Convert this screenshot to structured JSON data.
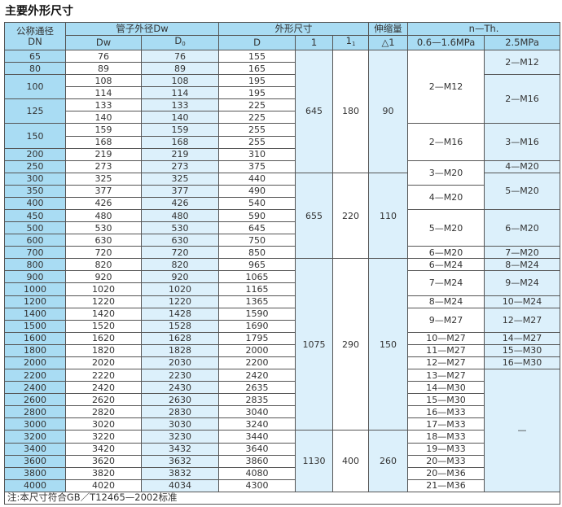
{
  "title": "主要外形尺寸",
  "colors": {
    "header": "#a9dcf3",
    "light": "#dcf0fb",
    "border": "#555555"
  },
  "header": {
    "dn_label": "公称通径",
    "dn_sub": "DN",
    "pipe_od": "管子外径Dw",
    "dims": "外形尺寸",
    "expansion": "伸缩量",
    "bolts": "n—Th.",
    "dw": "Dw",
    "d0": "D",
    "d0_sub": "0",
    "d": "D",
    "l": "1",
    "l1": "1",
    "l1_sub": "1",
    "delta_l": "△1",
    "low_pressure": "0.6—1.6MPa",
    "high_pressure": "2.5MPa"
  },
  "rows": [
    {
      "dw": "76",
      "d0": "76",
      "d": "155"
    },
    {
      "dw": "89",
      "d0": "89",
      "d": "165"
    },
    {
      "dw": "108",
      "d0": "108",
      "d": "195"
    },
    {
      "dw": "114",
      "d0": "114",
      "d": "195"
    },
    {
      "dw": "133",
      "d0": "133",
      "d": "225"
    },
    {
      "dw": "140",
      "d0": "140",
      "d": "225"
    },
    {
      "dw": "159",
      "d0": "159",
      "d": "255"
    },
    {
      "dw": "168",
      "d0": "168",
      "d": "255"
    },
    {
      "dw": "219",
      "d0": "219",
      "d": "310"
    },
    {
      "dw": "273",
      "d0": "273",
      "d": "375"
    },
    {
      "dw": "325",
      "d0": "325",
      "d": "440"
    },
    {
      "dw": "377",
      "d0": "377",
      "d": "490"
    },
    {
      "dw": "426",
      "d0": "426",
      "d": "540"
    },
    {
      "dw": "480",
      "d0": "480",
      "d": "590"
    },
    {
      "dw": "530",
      "d0": "530",
      "d": "645"
    },
    {
      "dw": "630",
      "d0": "630",
      "d": "750"
    },
    {
      "dw": "720",
      "d0": "720",
      "d": "850"
    },
    {
      "dw": "820",
      "d0": "820",
      "d": "965"
    },
    {
      "dw": "920",
      "d0": "920",
      "d": "1065"
    },
    {
      "dw": "1020",
      "d0": "1020",
      "d": "1165"
    },
    {
      "dw": "1220",
      "d0": "1220",
      "d": "1365"
    },
    {
      "dw": "1420",
      "d0": "1428",
      "d": "1590"
    },
    {
      "dw": "1520",
      "d0": "1528",
      "d": "1690"
    },
    {
      "dw": "1620",
      "d0": "1628",
      "d": "1795"
    },
    {
      "dw": "1820",
      "d0": "1828",
      "d": "2000"
    },
    {
      "dw": "2020",
      "d0": "2030",
      "d": "2200"
    },
    {
      "dw": "2220",
      "d0": "2230",
      "d": "2420"
    },
    {
      "dw": "2420",
      "d0": "2430",
      "d": "2635"
    },
    {
      "dw": "2620",
      "d0": "2630",
      "d": "2835"
    },
    {
      "dw": "2820",
      "d0": "2830",
      "d": "3040"
    },
    {
      "dw": "3020",
      "d0": "3030",
      "d": "3240"
    },
    {
      "dw": "3220",
      "d0": "3230",
      "d": "3440"
    },
    {
      "dw": "3420",
      "d0": "3432",
      "d": "3640"
    },
    {
      "dw": "3620",
      "d0": "3632",
      "d": "3860"
    },
    {
      "dw": "3820",
      "d0": "3832",
      "d": "4080"
    },
    {
      "dw": "4020",
      "d0": "4034",
      "d": "4300"
    }
  ],
  "dn_groups": [
    {
      "value": "65",
      "rows": 1
    },
    {
      "value": "80",
      "rows": 1
    },
    {
      "value": "100",
      "rows": 2
    },
    {
      "value": "125",
      "rows": 2
    },
    {
      "value": "150",
      "rows": 2
    },
    {
      "value": "200",
      "rows": 1
    },
    {
      "value": "250",
      "rows": 1
    },
    {
      "value": "300",
      "rows": 1
    },
    {
      "value": "350",
      "rows": 1
    },
    {
      "value": "400",
      "rows": 1
    },
    {
      "value": "450",
      "rows": 1
    },
    {
      "value": "500",
      "rows": 1
    },
    {
      "value": "600",
      "rows": 1
    },
    {
      "value": "700",
      "rows": 1
    },
    {
      "value": "800",
      "rows": 1
    },
    {
      "value": "900",
      "rows": 1
    },
    {
      "value": "1000",
      "rows": 1
    },
    {
      "value": "1200",
      "rows": 1
    },
    {
      "value": "1400",
      "rows": 1
    },
    {
      "value": "1500",
      "rows": 1
    },
    {
      "value": "1600",
      "rows": 1
    },
    {
      "value": "1800",
      "rows": 1
    },
    {
      "value": "2000",
      "rows": 1
    },
    {
      "value": "2200",
      "rows": 1
    },
    {
      "value": "2400",
      "rows": 1
    },
    {
      "value": "2600",
      "rows": 1
    },
    {
      "value": "2800",
      "rows": 1
    },
    {
      "value": "3000",
      "rows": 1
    },
    {
      "value": "3200",
      "rows": 1
    },
    {
      "value": "3400",
      "rows": 1
    },
    {
      "value": "3600",
      "rows": 1
    },
    {
      "value": "3800",
      "rows": 1
    },
    {
      "value": "4000",
      "rows": 1
    }
  ],
  "dim_groups": [
    {
      "l": "645",
      "l1": "180",
      "delta_l": "90",
      "rows": 10
    },
    {
      "l": "655",
      "l1": "220",
      "delta_l": "110",
      "rows": 7
    },
    {
      "l": "1075",
      "l1": "290",
      "delta_l": "150",
      "rows": 14
    },
    {
      "l": "1130",
      "l1": "400",
      "delta_l": "260",
      "rows": 5
    }
  ],
  "low_pressure_bolts": [
    {
      "value": "2—M12",
      "rows": 6
    },
    {
      "value": "2—M16",
      "rows": 3
    },
    {
      "value": "3—M20",
      "rows": 2
    },
    {
      "value": "4—M20",
      "rows": 2
    },
    {
      "value": "5—M20",
      "rows": 3
    },
    {
      "value": "6—M20",
      "rows": 1
    },
    {
      "value": "6—M24",
      "rows": 1
    },
    {
      "value": "7—M24",
      "rows": 2
    },
    {
      "value": "8—M24",
      "rows": 1
    },
    {
      "value": "9—M27",
      "rows": 2
    },
    {
      "value": "10—M27",
      "rows": 1
    },
    {
      "value": "11—M27",
      "rows": 1
    },
    {
      "value": "12—M27",
      "rows": 1
    },
    {
      "value": "13—M27",
      "rows": 1
    },
    {
      "value": "14—M30",
      "rows": 1
    },
    {
      "value": "15—M30",
      "rows": 1
    },
    {
      "value": "16—M33",
      "rows": 1
    },
    {
      "value": "17—M33",
      "rows": 1
    },
    {
      "value": "18—M33",
      "rows": 1
    },
    {
      "value": "19—M33",
      "rows": 1
    },
    {
      "value": "20—M33",
      "rows": 1
    },
    {
      "value": "20—M36",
      "rows": 1
    },
    {
      "value": "21—M36",
      "rows": 1
    }
  ],
  "high_pressure_bolts": [
    {
      "value": "2—M12",
      "rows": 2
    },
    {
      "value": "2—M16",
      "rows": 4
    },
    {
      "value": "3—M16",
      "rows": 3
    },
    {
      "value": "4—M20",
      "rows": 1
    },
    {
      "value": "5—M20",
      "rows": 3
    },
    {
      "value": "6—M20",
      "rows": 3
    },
    {
      "value": "7—M20",
      "rows": 1
    },
    {
      "value": "8—M24",
      "rows": 1
    },
    {
      "value": "9—M24",
      "rows": 2
    },
    {
      "value": "10—M24",
      "rows": 1
    },
    {
      "value": "12—M27",
      "rows": 2
    },
    {
      "value": "14—M27",
      "rows": 1
    },
    {
      "value": "15—M30",
      "rows": 1
    },
    {
      "value": "16—M30",
      "rows": 1
    },
    {
      "value": "—",
      "rows": 10
    }
  ],
  "note": "注:本尺寸符合GB／T12465—2002标准"
}
